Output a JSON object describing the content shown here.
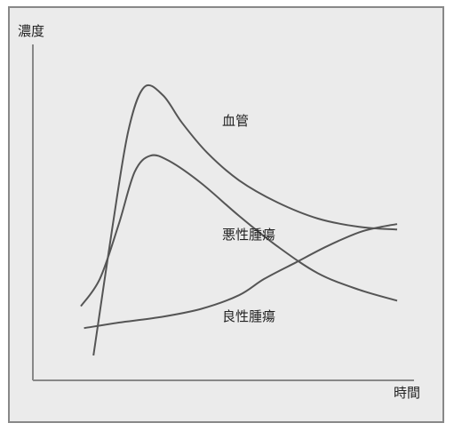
{
  "chart_data": {
    "type": "line",
    "title": "",
    "xlabel": "時間",
    "ylabel": "濃度",
    "grid": false,
    "legend": "none",
    "colors": {
      "background": "#ebebeb",
      "line": "#555555",
      "border": "#888888"
    },
    "series": [
      {
        "name": "血管",
        "x": [
          0.04,
          0.1,
          0.15,
          0.2,
          0.26,
          0.32,
          0.4,
          0.5,
          0.62,
          0.75,
          0.88,
          1.0
        ],
        "y": [
          0.0,
          0.47,
          0.82,
          0.98,
          0.95,
          0.85,
          0.74,
          0.64,
          0.56,
          0.5,
          0.47,
          0.46
        ]
      },
      {
        "name": "悪性腫瘍",
        "x": [
          0.0,
          0.06,
          0.12,
          0.17,
          0.22,
          0.28,
          0.38,
          0.5,
          0.62,
          0.75,
          0.88,
          1.0
        ],
        "y": [
          0.18,
          0.28,
          0.48,
          0.67,
          0.73,
          0.71,
          0.63,
          0.51,
          0.4,
          0.3,
          0.24,
          0.2
        ]
      },
      {
        "name": "良性腫瘍",
        "x": [
          0.01,
          0.12,
          0.25,
          0.38,
          0.5,
          0.58,
          0.68,
          0.78,
          0.88,
          0.95,
          1.0
        ],
        "y": [
          0.1,
          0.12,
          0.14,
          0.17,
          0.22,
          0.28,
          0.34,
          0.4,
          0.45,
          0.47,
          0.48
        ]
      }
    ],
    "annotations": [
      "血管",
      "悪性腫瘍",
      "良性腫瘍"
    ]
  }
}
